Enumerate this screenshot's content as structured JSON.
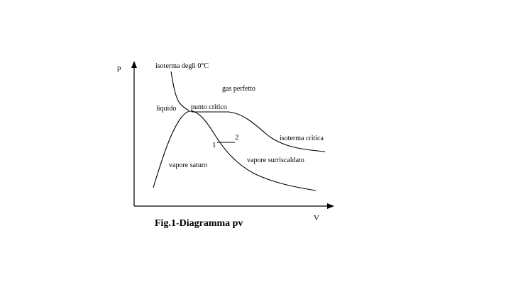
{
  "axes": {
    "y_label": "p",
    "x_label": "V"
  },
  "labels": {
    "isotherm_0c": "isoterma degli 0°C",
    "ideal_gas": "gas perfetto",
    "liquid": "liquido",
    "critical_point": "punto critico",
    "critical_isotherm": "isoterma critica",
    "point_1": "1",
    "point_2": "2",
    "superheated_vapor": "vapore surriscaldato",
    "saturated_vapor": "vapore saturo"
  },
  "caption": "Fig.1-Diagramma pv"
}
